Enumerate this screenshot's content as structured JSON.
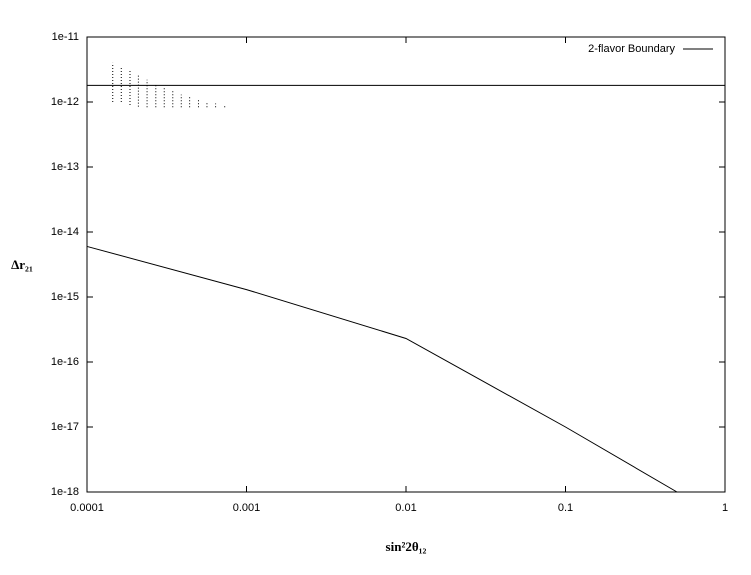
{
  "chart_data": {
    "type": "line",
    "xlabel": "sin²2θ₁₂",
    "ylabel": "Δr₂₁",
    "xscale": "log",
    "yscale": "log",
    "xlim": [
      0.0001,
      1
    ],
    "ylim": [
      1e-18,
      1e-11
    ],
    "xticks": [
      0.0001,
      0.001,
      0.01,
      0.1,
      1
    ],
    "yticks": [
      1e-18,
      1e-17,
      1e-16,
      1e-15,
      1e-14,
      1e-13,
      1e-12,
      1e-11
    ],
    "legend_position": "upper right",
    "series": [
      {
        "name": "2-flavor Boundary",
        "color": "#000000",
        "kind": "hline",
        "x": [
          0.0001,
          1
        ],
        "values": [
          1.8e-12,
          1.8e-12
        ]
      },
      {
        "color": "#000000",
        "kind": "line",
        "x": [
          0.0001,
          0.001,
          0.01,
          0.1,
          0.5
        ],
        "values": [
          6e-15,
          1.3e-15,
          2.3e-16,
          1e-17,
          1e-18
        ]
      },
      {
        "color": "#000000",
        "kind": "range",
        "x": [
          0.000145,
          0.000164,
          0.000186,
          0.00021,
          0.000238,
          0.00027,
          0.000305,
          0.000345,
          0.00039,
          0.00044,
          0.0005,
          0.000565,
          0.00064,
          0.00073
        ],
        "low": [
          1e-12,
          1e-12,
          9e-13,
          8.5e-13,
          8.3e-13,
          8.3e-13,
          8.3e-13,
          8.3e-13,
          8.3e-13,
          8.3e-13,
          8.3e-13,
          8.3e-13,
          8.3e-13,
          8.3e-13
        ],
        "high": [
          4e-12,
          3.5e-12,
          3e-12,
          2.6e-12,
          2.2e-12,
          1.9e-12,
          1.7e-12,
          1.5e-12,
          1.3e-12,
          1.2e-12,
          1.1e-12,
          1e-12,
          9.5e-13,
          9e-13
        ]
      }
    ]
  }
}
